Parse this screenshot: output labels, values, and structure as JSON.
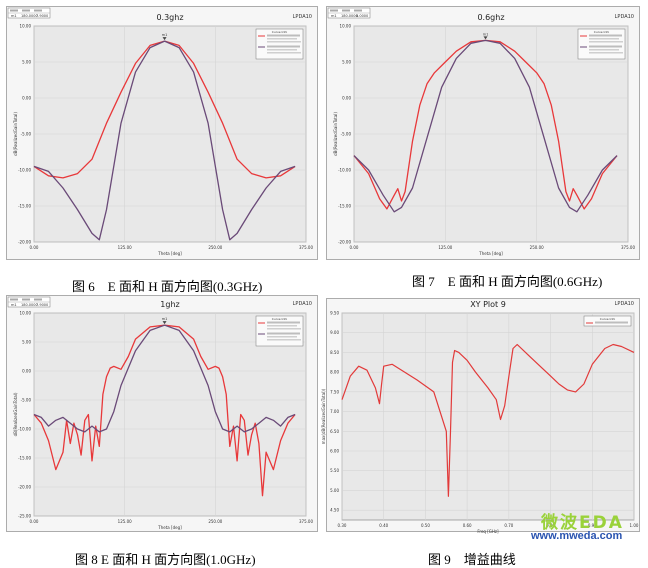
{
  "colors": {
    "e_plane": "#e8383a",
    "h_plane": "#6a4a78",
    "gain": "#e23a3a",
    "plot_bg": "#e8e8e8",
    "frame_bg": "#f6f6f6",
    "grid": "#d4d4d4"
  },
  "captions": {
    "fig6": "图 6　E 面和 H 面方向图(0.3GHz)",
    "fig7": "图 7　E 面和 H 面方向图(0.6GHz)",
    "fig8": "图 8 E 面和 H 面方向图(1.0GHz)",
    "fig9": "图 9　增益曲线"
  },
  "watermark": {
    "logo": "微波EDA",
    "url": "www.mweda.com"
  },
  "chart_data": [
    {
      "type": "line",
      "title": "0.3ghz",
      "project_label": "LPDA10",
      "ylabel": "dB(RealizedGainTotal)",
      "xlabel": "Theta [deg]",
      "xlim": [
        0,
        375
      ],
      "ylim": [
        -20,
        10
      ],
      "x_ticks": [
        0,
        125,
        250,
        375
      ],
      "y_ticks": [
        10,
        5,
        0,
        -5,
        -10,
        -15,
        -20
      ],
      "legend_title": "Curve Info",
      "marker": {
        "name": "m1",
        "x": 180,
        "y": 7.9
      },
      "series": [
        {
          "key": "e_plane",
          "x": [
            0,
            20,
            40,
            60,
            80,
            100,
            120,
            140,
            160,
            180,
            200,
            220,
            240,
            260,
            280,
            300,
            320,
            340,
            360
          ],
          "y": [
            -9.5,
            -10.8,
            -11.1,
            -10.5,
            -8.5,
            -3.5,
            0.8,
            4.8,
            7.3,
            7.9,
            7.3,
            4.8,
            0.8,
            -3.5,
            -8.5,
            -10.5,
            -11.1,
            -10.8,
            -9.5
          ]
        },
        {
          "key": "h_plane",
          "x": [
            0,
            20,
            40,
            60,
            80,
            90,
            100,
            120,
            140,
            160,
            180,
            200,
            220,
            240,
            260,
            270,
            280,
            300,
            320,
            340,
            360
          ],
          "y": [
            -9.5,
            -10.2,
            -12.5,
            -15.5,
            -18.8,
            -19.7,
            -15.5,
            -3.5,
            3.6,
            7.0,
            7.9,
            7.0,
            3.6,
            -3.5,
            -15.5,
            -19.7,
            -18.8,
            -15.5,
            -12.5,
            -10.2,
            -9.5
          ]
        }
      ]
    },
    {
      "type": "line",
      "title": "0.6ghz",
      "project_label": "LPDA10",
      "ylabel": "dB(RealizedGainTotal)",
      "xlabel": "Theta [deg]",
      "xlim": [
        0,
        375
      ],
      "ylim": [
        -20,
        10
      ],
      "x_ticks": [
        0,
        125,
        250,
        375
      ],
      "y_ticks": [
        10,
        5,
        0,
        -5,
        -10,
        -15,
        -20
      ],
      "legend_title": "Curve Info",
      "marker": {
        "name": "m1",
        "x": 180,
        "y": 8.0
      },
      "series": [
        {
          "key": "e_plane",
          "x": [
            0,
            20,
            35,
            45,
            55,
            60,
            65,
            70,
            80,
            90,
            100,
            110,
            125,
            140,
            160,
            180,
            200,
            220,
            235,
            250,
            260,
            270,
            280,
            290,
            295,
            300,
            305,
            315,
            325,
            340,
            360
          ],
          "y": [
            -8.0,
            -10.5,
            -14.0,
            -15.4,
            -13.5,
            -12.6,
            -14.3,
            -13.0,
            -6.0,
            -1.0,
            2.0,
            3.5,
            5.0,
            6.5,
            7.8,
            8.0,
            7.8,
            6.5,
            5.0,
            3.5,
            2.0,
            -1.0,
            -6.0,
            -13.0,
            -14.3,
            -12.6,
            -13.5,
            -15.4,
            -14.0,
            -10.5,
            -8.0
          ]
        },
        {
          "key": "h_plane",
          "x": [
            0,
            20,
            40,
            55,
            65,
            80,
            100,
            120,
            140,
            160,
            180,
            200,
            220,
            240,
            260,
            280,
            295,
            305,
            320,
            340,
            360
          ],
          "y": [
            -8.0,
            -10.0,
            -13.5,
            -15.8,
            -15.2,
            -12.5,
            -5.5,
            1.5,
            5.5,
            7.6,
            8.0,
            7.6,
            5.5,
            1.5,
            -5.5,
            -12.5,
            -15.2,
            -15.8,
            -13.5,
            -10.0,
            -8.0
          ]
        }
      ]
    },
    {
      "type": "line",
      "title": "1ghz",
      "project_label": "LPDA10",
      "ylabel": "dB(RealizedGainTotal)",
      "xlabel": "Theta [deg]",
      "xlim": [
        0,
        375
      ],
      "ylim": [
        -25,
        10
      ],
      "x_ticks": [
        0,
        125,
        250,
        375
      ],
      "y_ticks": [
        10,
        5,
        0,
        -5,
        -10,
        -15,
        -20,
        -25
      ],
      "legend_title": "Curve Info",
      "marker": {
        "name": "m1",
        "x": 180,
        "y": 7.9
      },
      "series": [
        {
          "key": "e_plane",
          "x": [
            0,
            10,
            20,
            30,
            40,
            45,
            50,
            55,
            60,
            65,
            70,
            75,
            80,
            85,
            90,
            95,
            100,
            105,
            110,
            120,
            130,
            140,
            160,
            180,
            200,
            220,
            230,
            240,
            250,
            255,
            260,
            265,
            270,
            275,
            280,
            285,
            290,
            295,
            300,
            305,
            310,
            315,
            320,
            330,
            340,
            350,
            360
          ],
          "y": [
            -7.5,
            -9.0,
            -12.0,
            -17.0,
            -14.0,
            -8.5,
            -12.5,
            -9.0,
            -11.0,
            -14.5,
            -8.5,
            -7.5,
            -15.5,
            -9.5,
            -13.0,
            -4.0,
            -1.0,
            0.5,
            0.8,
            0.3,
            2.5,
            5.5,
            7.6,
            7.9,
            7.6,
            5.5,
            2.5,
            0.3,
            0.8,
            0.5,
            -1.0,
            -4.0,
            -13.0,
            -9.5,
            -15.5,
            -7.5,
            -8.5,
            -14.5,
            -11.0,
            -9.0,
            -12.5,
            -21.5,
            -14.0,
            -17.0,
            -12.0,
            -9.0,
            -7.5
          ]
        },
        {
          "key": "h_plane",
          "x": [
            0,
            10,
            20,
            30,
            40,
            50,
            60,
            70,
            80,
            90,
            100,
            110,
            120,
            140,
            160,
            180,
            200,
            220,
            240,
            250,
            260,
            270,
            280,
            290,
            300,
            310,
            320,
            330,
            340,
            350,
            360
          ],
          "y": [
            -7.5,
            -8.0,
            -9.5,
            -8.5,
            -8.0,
            -9.0,
            -10.0,
            -10.5,
            -9.5,
            -10.5,
            -10.0,
            -7.0,
            -2.5,
            3.5,
            7.0,
            7.9,
            7.0,
            3.5,
            -2.5,
            -7.0,
            -10.0,
            -10.5,
            -9.5,
            -10.5,
            -10.0,
            -9.0,
            -8.0,
            -8.5,
            -9.5,
            -8.0,
            -7.5
          ]
        }
      ]
    },
    {
      "type": "line",
      "title": "XY Plot 9",
      "project_label": "LPDA10",
      "ylabel": "max(dB(RealizedGainTotal))",
      "xlabel": "Freq [GHz]",
      "xlim": [
        0.3,
        1.0
      ],
      "ylim": [
        4.25,
        9.5
      ],
      "x_ticks": [
        0.3,
        0.4,
        0.5,
        0.6,
        0.7,
        0.8,
        0.9,
        1.0
      ],
      "y_ticks": [
        9.5,
        9.0,
        8.5,
        8.0,
        7.5,
        7.0,
        6.5,
        6.0,
        5.5,
        5.0,
        4.5
      ],
      "legend_title": "Curve Info",
      "series": [
        {
          "key": "gain",
          "x": [
            0.3,
            0.32,
            0.34,
            0.36,
            0.38,
            0.39,
            0.395,
            0.4,
            0.42,
            0.45,
            0.48,
            0.52,
            0.55,
            0.555,
            0.56,
            0.565,
            0.57,
            0.58,
            0.6,
            0.62,
            0.65,
            0.67,
            0.68,
            0.69,
            0.7,
            0.71,
            0.72,
            0.75,
            0.78,
            0.8,
            0.82,
            0.84,
            0.86,
            0.88,
            0.9,
            0.93,
            0.95,
            0.97,
            1.0
          ],
          "y": [
            7.3,
            7.9,
            8.15,
            8.05,
            7.6,
            7.2,
            7.7,
            8.15,
            8.2,
            8.0,
            7.8,
            7.5,
            6.5,
            4.85,
            6.5,
            8.25,
            8.55,
            8.5,
            8.3,
            8.0,
            7.6,
            7.3,
            6.8,
            7.15,
            7.9,
            8.6,
            8.7,
            8.4,
            8.1,
            7.9,
            7.7,
            7.55,
            7.5,
            7.7,
            8.2,
            8.6,
            8.7,
            8.65,
            8.5
          ]
        }
      ]
    }
  ]
}
